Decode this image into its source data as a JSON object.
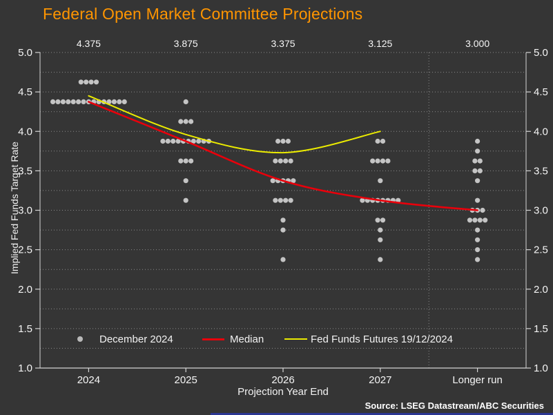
{
  "title": "Federal Open Market Committee Projections",
  "colors": {
    "background": "#353535",
    "title": "#ff9500",
    "dots": "#cccccc",
    "median_line": "#e8000b",
    "futures_line": "#ebeb00",
    "grid": "#9a9a9a",
    "axis": "#d5d5d5",
    "text": "#f5f5f5",
    "brand_bar": "#2c3792"
  },
  "source": "Source: LSEG Datastream/ABC Securities",
  "chart_data": {
    "type": "scatter",
    "title": "Federal Open Market Committee Projections",
    "xlabel": "Projection Year End",
    "ylabel": "Implied Fed Funds Target Rate",
    "ylim": [
      1.0,
      5.0
    ],
    "ytick_step": 0.5,
    "grid_step": 0.25,
    "grid": "dotted horizontal every 0.25, vertical dotted separator before Longer run",
    "yticks": [
      "5.0",
      "4.5",
      "4.0",
      "3.5",
      "3.0",
      "2.5",
      "2.0",
      "1.5",
      "1.0"
    ],
    "categories": [
      "2024",
      "2025",
      "2026",
      "2027",
      "Longer run"
    ],
    "median_labels": [
      "4.375",
      "3.875",
      "3.375",
      "3.125",
      "3.000"
    ],
    "dot_series_name": "December 2024",
    "dot_rows": [
      [
        [
          4.625,
          4
        ],
        [
          4.375,
          15
        ]
      ],
      [
        [
          4.375,
          1
        ],
        [
          4.125,
          3
        ],
        [
          3.875,
          10
        ],
        [
          3.625,
          3
        ],
        [
          3.375,
          1
        ],
        [
          3.125,
          1
        ]
      ],
      [
        [
          3.875,
          3
        ],
        [
          3.625,
          4
        ],
        [
          3.375,
          5
        ],
        [
          3.125,
          4
        ],
        [
          2.875,
          1
        ],
        [
          2.75,
          1
        ],
        [
          2.375,
          1
        ]
      ],
      [
        [
          3.875,
          2
        ],
        [
          3.625,
          4
        ],
        [
          3.375,
          1
        ],
        [
          3.125,
          8
        ],
        [
          2.875,
          2
        ],
        [
          2.75,
          1
        ],
        [
          2.625,
          1
        ],
        [
          2.375,
          1
        ]
      ],
      [
        [
          3.875,
          1
        ],
        [
          3.75,
          1
        ],
        [
          3.625,
          2
        ],
        [
          3.5,
          2
        ],
        [
          3.375,
          1
        ],
        [
          3.125,
          1
        ],
        [
          3.0,
          3
        ],
        [
          2.875,
          4
        ],
        [
          2.75,
          1
        ],
        [
          2.625,
          1
        ],
        [
          2.5,
          1
        ],
        [
          2.375,
          1
        ]
      ]
    ],
    "series": [
      {
        "name": "Median",
        "type": "line",
        "category_indexes": [
          0,
          1,
          2,
          3,
          4
        ],
        "values": [
          4.375,
          3.875,
          3.375,
          3.125,
          3.0
        ]
      },
      {
        "name": "Fed Funds Futures 19/12/2024",
        "type": "line",
        "category_indexes": [
          0,
          1,
          2,
          3
        ],
        "values": [
          4.45,
          3.96,
          3.73,
          4.0
        ]
      }
    ],
    "legend": [
      {
        "label": "December 2024",
        "marker": "dot"
      },
      {
        "label": "Median",
        "marker": "line"
      },
      {
        "label": "Fed Funds Futures 19/12/2024",
        "marker": "line"
      }
    ],
    "legend_position": "bottom inside plot"
  }
}
